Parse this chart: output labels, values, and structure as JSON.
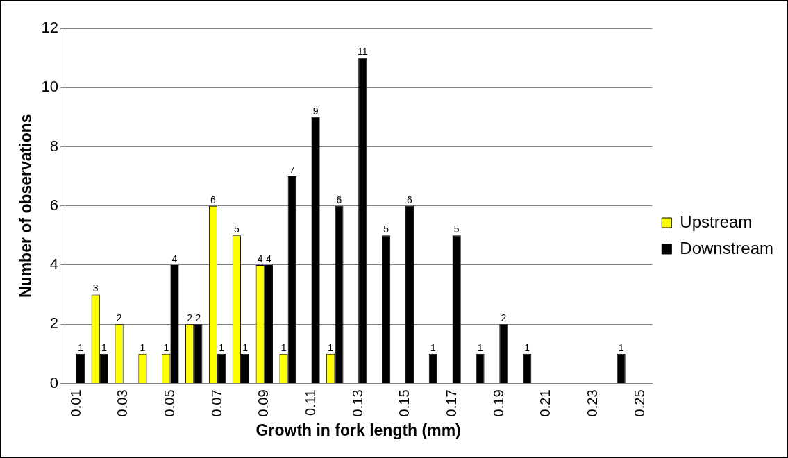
{
  "chart_data": {
    "type": "bar",
    "xlabel": "Growth in fork length (mm)",
    "ylabel": "Number of observations",
    "categories": [
      "0.01",
      null,
      "0.03",
      null,
      "0.05",
      null,
      "0.07",
      null,
      "0.09",
      null,
      "0.11",
      null,
      "0.13",
      null,
      "0.15",
      null,
      "0.17",
      null,
      "0.19",
      null,
      "0.21",
      null,
      "0.23",
      null,
      "0.25"
    ],
    "series": [
      {
        "name": "Upstream",
        "color": "#ffff00",
        "values": [
          null,
          3,
          2,
          1,
          1,
          2,
          6,
          5,
          4,
          1,
          null,
          1,
          null,
          null,
          null,
          null,
          null,
          null,
          null,
          null,
          null,
          null,
          null,
          null,
          null
        ]
      },
      {
        "name": "Downstream",
        "color": "#000000",
        "values": [
          1,
          1,
          null,
          null,
          4,
          2,
          1,
          1,
          4,
          7,
          9,
          6,
          11,
          5,
          6,
          1,
          5,
          1,
          2,
          1,
          null,
          null,
          null,
          1,
          null
        ]
      }
    ],
    "ylim": [
      0,
      12
    ],
    "yticks": [
      0,
      2,
      4,
      6,
      8,
      10,
      12
    ],
    "grid": "y",
    "legend": "right",
    "data_labels": true
  }
}
